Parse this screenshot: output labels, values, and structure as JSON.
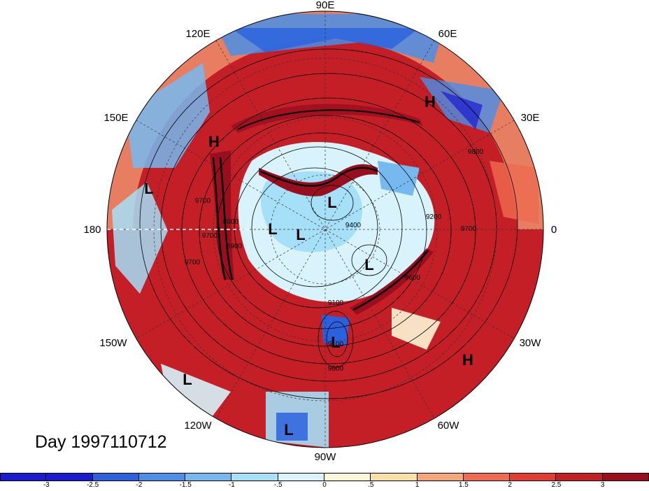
{
  "title": "Day 1997110712",
  "lon_labels": [
    "90E",
    "60E",
    "30E",
    "0",
    "30W",
    "60W",
    "90W",
    "120W",
    "150W",
    "180",
    "150E",
    "120E"
  ],
  "pressure_systems": [
    {
      "id": "h1",
      "type": "H"
    },
    {
      "id": "h2",
      "type": "H"
    },
    {
      "id": "h3",
      "type": "H"
    },
    {
      "id": "l1",
      "type": "L"
    },
    {
      "id": "l2",
      "type": "L"
    },
    {
      "id": "l3",
      "type": "L"
    },
    {
      "id": "l4",
      "type": "L"
    },
    {
      "id": "l5",
      "type": "L"
    },
    {
      "id": "l6",
      "type": "L"
    },
    {
      "id": "l7",
      "type": "L"
    },
    {
      "id": "l8",
      "type": "L"
    },
    {
      "id": "l9",
      "type": "L"
    }
  ],
  "contour_labels": [
    "9700",
    "9700",
    "9700",
    "9100",
    "8900",
    "9600",
    "9100",
    "8800",
    "9800",
    "9700",
    "9600",
    "9200",
    "9400"
  ],
  "colorbar": {
    "colors": [
      "#1b1bd1",
      "#2b61de",
      "#4a8fe8",
      "#75b9f0",
      "#a6dff8",
      "#d8f3fb",
      "#fdf6d6",
      "#fbe0a4",
      "#f6a77a",
      "#ef6c50",
      "#e33c34",
      "#c41e27",
      "#9a0e1e"
    ],
    "tick_labels": [
      "-3",
      "-2.5",
      "-2",
      "-1.5",
      "-1",
      "-.5",
      "0",
      ".5",
      "1",
      "1.5",
      "2",
      "2.5",
      "3"
    ]
  }
}
